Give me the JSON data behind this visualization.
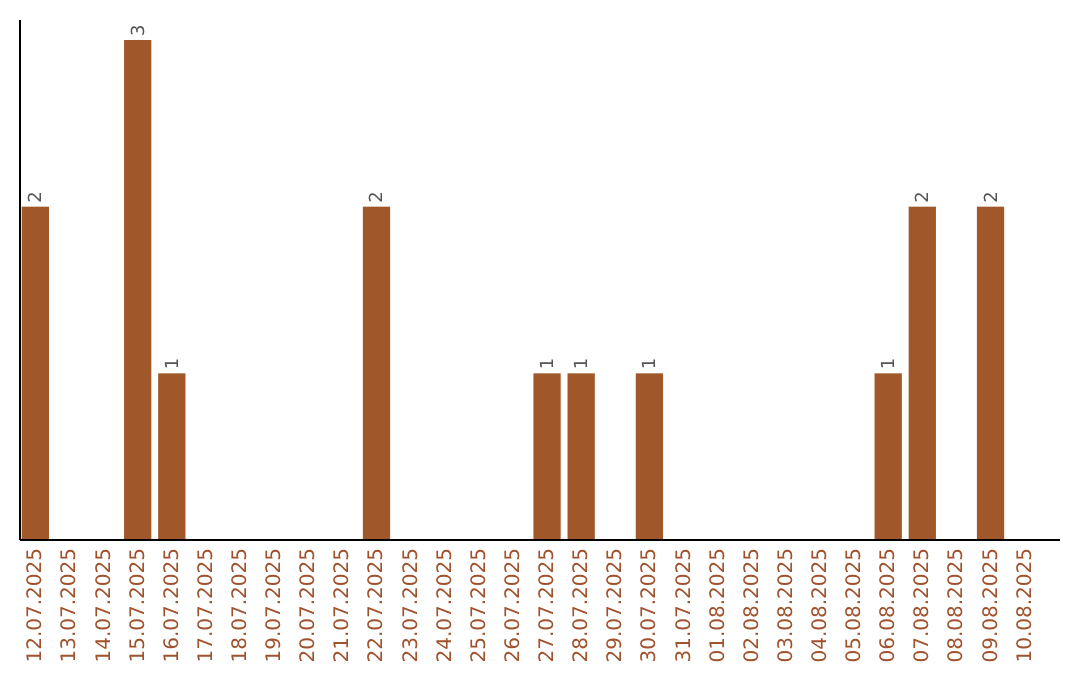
{
  "chart_data": {
    "type": "bar",
    "categories": [
      "12.07.2025",
      "13.07.2025",
      "14.07.2025",
      "15.07.2025",
      "16.07.2025",
      "17.07.2025",
      "18.07.2025",
      "19.07.2025",
      "20.07.2025",
      "21.07.2025",
      "22.07.2025",
      "23.07.2025",
      "24.07.2025",
      "25.07.2025",
      "26.07.2025",
      "27.07.2025",
      "28.07.2025",
      "29.07.2025",
      "30.07.2025",
      "31.07.2025",
      "01.08.2025",
      "02.08.2025",
      "03.08.2025",
      "04.08.2025",
      "05.08.2025",
      "06.08.2025",
      "07.08.2025",
      "08.08.2025",
      "09.08.2025",
      "10.08.2025"
    ],
    "values": [
      2,
      0,
      0,
      3,
      1,
      0,
      0,
      0,
      0,
      0,
      2,
      0,
      0,
      0,
      0,
      1,
      1,
      0,
      1,
      0,
      0,
      0,
      0,
      0,
      0,
      1,
      2,
      0,
      2,
      0
    ],
    "value_labels": [
      "2",
      null,
      null,
      "3",
      "1",
      null,
      null,
      null,
      null,
      null,
      "2",
      null,
      null,
      null,
      null,
      "1",
      "1",
      null,
      "1",
      null,
      null,
      null,
      null,
      null,
      null,
      "1",
      "2",
      null,
      "2",
      null
    ],
    "color": "#a0582b"
  }
}
